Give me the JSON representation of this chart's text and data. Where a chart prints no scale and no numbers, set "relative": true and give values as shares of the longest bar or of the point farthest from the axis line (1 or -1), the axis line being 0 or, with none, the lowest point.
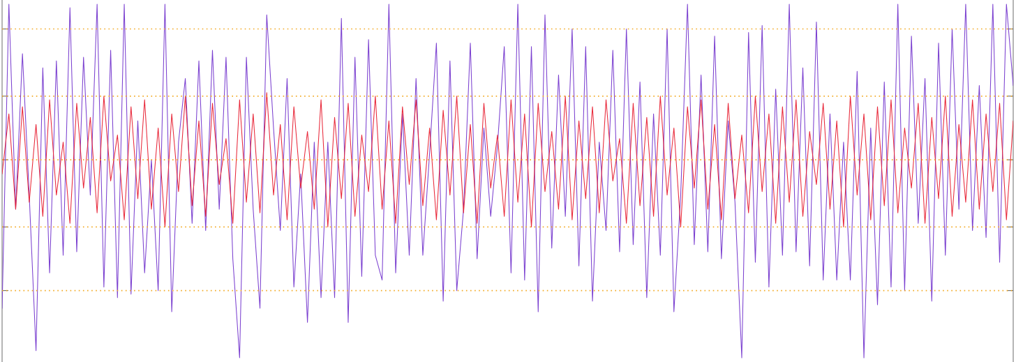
{
  "chart_data": {
    "type": "line",
    "relative": true,
    "categories": [
      null,
      null,
      null,
      null,
      null,
      null,
      null,
      null,
      null,
      null,
      null,
      null,
      null,
      null,
      null,
      null,
      null,
      null,
      null,
      null,
      null,
      null,
      null,
      null,
      null,
      null,
      null,
      null,
      null,
      null,
      null,
      null,
      null,
      null,
      null,
      null,
      null,
      null,
      null,
      null,
      null,
      null,
      null,
      null,
      null,
      null,
      null,
      null,
      null,
      null,
      null,
      null,
      null,
      null,
      null,
      null,
      null,
      null,
      null,
      null,
      null,
      null,
      null,
      null,
      null,
      null,
      null,
      null,
      null,
      null,
      null,
      null,
      null,
      null,
      null,
      null,
      null,
      null,
      null,
      null,
      null,
      null,
      null,
      null,
      null,
      null,
      null,
      null,
      null,
      null,
      null,
      null,
      null,
      null,
      null,
      null,
      null,
      null,
      null,
      null,
      null,
      null,
      null,
      null,
      null,
      null,
      null,
      null,
      null,
      null,
      null,
      null,
      null,
      null,
      null,
      null,
      null,
      null,
      null,
      null,
      null,
      null,
      null,
      null,
      null,
      null,
      null,
      null,
      null,
      null,
      null,
      null,
      null,
      null,
      null,
      null,
      null,
      null,
      null,
      null,
      null,
      null,
      null,
      null,
      null,
      null,
      null,
      null,
      null,
      null
    ],
    "series": [
      {
        "color": "#7b40d0",
        "values": [
          0.14,
          1.0,
          0.42,
          0.86,
          0.46,
          0.02,
          0.82,
          0.24,
          0.84,
          0.29,
          0.99,
          0.3,
          0.85,
          0.46,
          1.0,
          0.2,
          0.87,
          0.17,
          1.0,
          0.18,
          0.67,
          0.24,
          0.56,
          0.19,
          1.0,
          0.13,
          0.61,
          0.79,
          0.38,
          0.84,
          0.36,
          0.87,
          0.42,
          0.85,
          0.28,
          0.0,
          0.85,
          0.42,
          0.14,
          0.97,
          0.65,
          0.36,
          0.79,
          0.2,
          0.52,
          0.1,
          0.61,
          0.17,
          0.61,
          0.17,
          0.96,
          0.1,
          0.85,
          0.23,
          0.9,
          0.29,
          0.22,
          1.0,
          0.24,
          0.69,
          0.29,
          0.79,
          0.29,
          0.58,
          0.89,
          0.16,
          0.84,
          0.19,
          0.42,
          0.89,
          0.28,
          0.65,
          0.4,
          0.6,
          0.88,
          0.24,
          1.0,
          0.22,
          0.88,
          0.13,
          0.97,
          0.31,
          0.8,
          0.4,
          0.93,
          0.26,
          0.88,
          0.16,
          0.61,
          0.36,
          0.87,
          0.3,
          0.93,
          0.32,
          0.78,
          0.17,
          0.69,
          0.29,
          0.93,
          0.13,
          0.46,
          1.0,
          0.32,
          0.8,
          0.3,
          0.91,
          0.28,
          0.67,
          0.44,
          0.0,
          0.92,
          0.27,
          0.94,
          0.2,
          0.76,
          0.29,
          1.0,
          0.3,
          0.82,
          0.26,
          0.95,
          0.22,
          0.69,
          0.22,
          0.61,
          0.22,
          0.81,
          0.0,
          0.65,
          0.15,
          0.78,
          0.2,
          1.0,
          0.19,
          0.91,
          0.38,
          0.79,
          0.16,
          0.89,
          0.29,
          0.93,
          0.42,
          1.0,
          0.36,
          0.77,
          0.34,
          1.0,
          0.27,
          1.0,
          0.77
        ]
      },
      {
        "color": "#e8283a",
        "values": [
          0.52,
          0.69,
          0.42,
          0.71,
          0.44,
          0.66,
          0.4,
          0.73,
          0.46,
          0.61,
          0.38,
          0.72,
          0.48,
          0.68,
          0.41,
          0.74,
          0.5,
          0.63,
          0.39,
          0.71,
          0.45,
          0.73,
          0.42,
          0.65,
          0.37,
          0.69,
          0.47,
          0.74,
          0.43,
          0.67,
          0.4,
          0.72,
          0.49,
          0.62,
          0.38,
          0.73,
          0.44,
          0.69,
          0.41,
          0.75,
          0.46,
          0.66,
          0.39,
          0.71,
          0.48,
          0.64,
          0.42,
          0.73,
          0.37,
          0.68,
          0.45,
          0.72,
          0.4,
          0.63,
          0.47,
          0.74,
          0.42,
          0.67,
          0.38,
          0.71,
          0.49,
          0.73,
          0.43,
          0.65,
          0.39,
          0.7,
          0.46,
          0.74,
          0.41,
          0.66,
          0.38,
          0.72,
          0.48,
          0.63,
          0.4,
          0.73,
          0.44,
          0.69,
          0.37,
          0.72,
          0.47,
          0.64,
          0.42,
          0.74,
          0.39,
          0.67,
          0.45,
          0.71,
          0.41,
          0.73,
          0.5,
          0.62,
          0.38,
          0.72,
          0.43,
          0.68,
          0.4,
          0.74,
          0.46,
          0.65,
          0.37,
          0.71,
          0.48,
          0.73,
          0.42,
          0.66,
          0.39,
          0.72,
          0.45,
          0.63,
          0.41,
          0.74,
          0.47,
          0.69,
          0.38,
          0.71,
          0.44,
          0.73,
          0.4,
          0.64,
          0.49,
          0.72,
          0.42,
          0.67,
          0.37,
          0.74,
          0.46,
          0.69,
          0.39,
          0.71,
          0.43,
          0.73,
          0.41,
          0.65,
          0.48,
          0.72,
          0.38,
          0.68,
          0.45,
          0.74,
          0.4,
          0.66,
          0.44,
          0.73,
          0.42,
          0.69,
          0.47,
          0.72,
          0.39,
          0.67
        ]
      }
    ],
    "ref_lines": [
      {
        "axis": "y",
        "value": 0.93,
        "color": "#f2a922",
        "line_style": "dotted"
      },
      {
        "axis": "y",
        "value": 0.74,
        "color": "#f2a922",
        "line_style": "dotted"
      },
      {
        "axis": "y",
        "value": 0.56,
        "color": "#f2a922",
        "line_style": "dotted"
      },
      {
        "axis": "y",
        "value": 0.37,
        "color": "#f2a922",
        "line_style": "dotted"
      },
      {
        "axis": "y",
        "value": 0.19,
        "color": "#f2a922",
        "line_style": "dotted"
      }
    ]
  }
}
